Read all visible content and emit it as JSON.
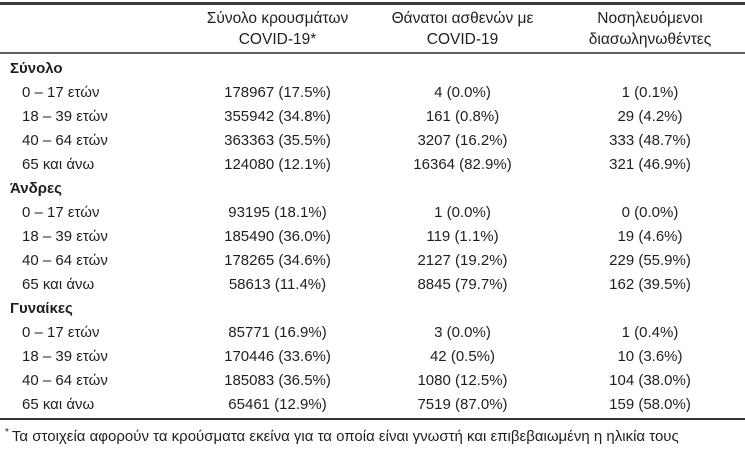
{
  "table": {
    "columns": [
      {
        "line1": "Σύνολο κρουσμάτων",
        "line2": "COVID-19*"
      },
      {
        "line1": "Θάνατοι ασθενών με",
        "line2": "COVID-19"
      },
      {
        "line1": "Νοσηλευόμενοι",
        "line2": "διασωληνωθέντες"
      }
    ],
    "sections": [
      {
        "title": "Σύνολο",
        "rows": [
          {
            "label": "0 – 17 ετών",
            "cases": "178967 (17.5%)",
            "deaths": "4 (0.0%)",
            "intubated": "1 (0.1%)"
          },
          {
            "label": "18 – 39 ετών",
            "cases": "355942 (34.8%)",
            "deaths": "161 (0.8%)",
            "intubated": "29 (4.2%)"
          },
          {
            "label": "40 – 64 ετών",
            "cases": "363363 (35.5%)",
            "deaths": "3207 (16.2%)",
            "intubated": "333 (48.7%)"
          },
          {
            "label": "65 και άνω",
            "cases": "124080 (12.1%)",
            "deaths": "16364 (82.9%)",
            "intubated": "321 (46.9%)"
          }
        ]
      },
      {
        "title": "Άνδρες",
        "rows": [
          {
            "label": "0 – 17 ετών",
            "cases": "93195 (18.1%)",
            "deaths": "1 (0.0%)",
            "intubated": "0 (0.0%)"
          },
          {
            "label": "18 – 39 ετών",
            "cases": "185490 (36.0%)",
            "deaths": "119 (1.1%)",
            "intubated": "19 (4.6%)"
          },
          {
            "label": "40 – 64 ετών",
            "cases": "178265 (34.6%)",
            "deaths": "2127 (19.2%)",
            "intubated": "229 (55.9%)"
          },
          {
            "label": "65 και άνω",
            "cases": "58613 (11.4%)",
            "deaths": "8845 (79.7%)",
            "intubated": "162 (39.5%)"
          }
        ]
      },
      {
        "title": "Γυναίκες",
        "rows": [
          {
            "label": "0 – 17 ετών",
            "cases": "85771 (16.9%)",
            "deaths": "3 (0.0%)",
            "intubated": "1 (0.4%)"
          },
          {
            "label": "18 – 39 ετών",
            "cases": "170446 (33.6%)",
            "deaths": "42 (0.5%)",
            "intubated": "10 (3.6%)"
          },
          {
            "label": "40 – 64 ετών",
            "cases": "185083 (36.5%)",
            "deaths": "1080 (12.5%)",
            "intubated": "104 (38.0%)"
          },
          {
            "label": "65 και άνω",
            "cases": "65461 (12.9%)",
            "deaths": "7519 (87.0%)",
            "intubated": "159 (58.0%)"
          }
        ]
      }
    ],
    "footnote": {
      "marker": "*",
      "text": "Τα στοιχεία αφορούν τα κρούσματα εκείνα για τα οποία είναι γνωστή και επιβεβαιωμένη η ηλικία τους"
    }
  },
  "colors": {
    "text": "#1f1f1f",
    "rule_heavy": "#3a3a3a",
    "rule_medium": "#5e5e5e",
    "rule_footnote": "#333333"
  }
}
